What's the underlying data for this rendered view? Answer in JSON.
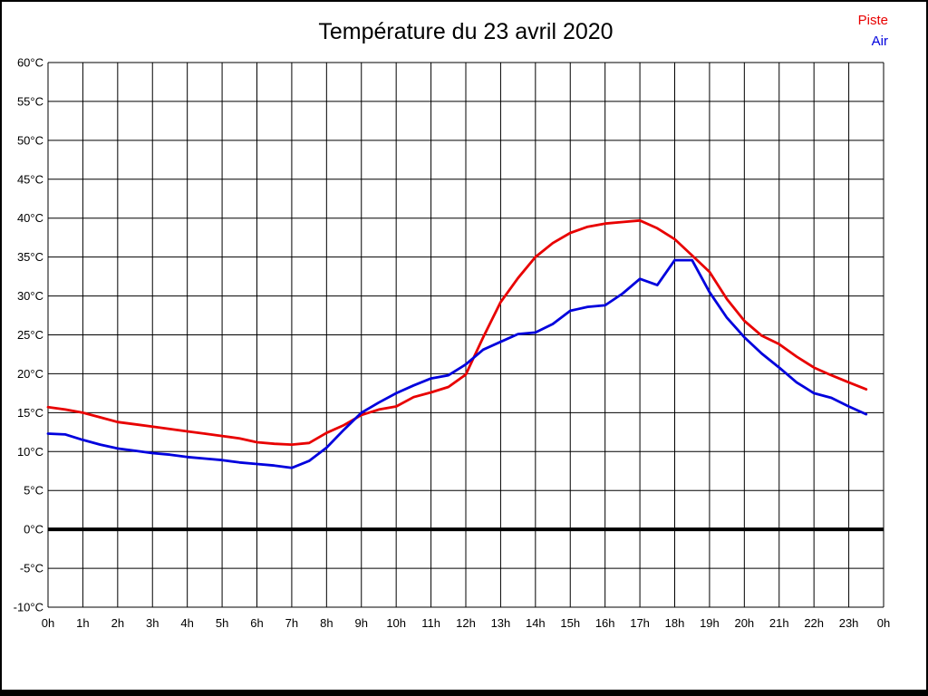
{
  "header": {
    "title": "Température du 23 avril 2020"
  },
  "legend": {
    "items": [
      {
        "label": "Piste",
        "color": "#e80000"
      },
      {
        "label": "Air",
        "color": "#0000dd"
      }
    ]
  },
  "chart_data": {
    "type": "line",
    "title": "Température du 23 avril 2020",
    "xlabel": "",
    "ylabel": "",
    "xlim": [
      0,
      24
    ],
    "ylim": [
      -10,
      60
    ],
    "grid": "on",
    "legend_position": "top-right",
    "x_unit": "hours",
    "x": [
      0,
      0.5,
      1,
      1.5,
      2,
      2.5,
      3,
      3.5,
      4,
      4.5,
      5,
      5.5,
      6,
      6.5,
      7,
      7.5,
      8,
      8.5,
      9,
      9.5,
      10,
      10.5,
      11,
      11.5,
      12,
      12.5,
      13,
      13.5,
      14,
      14.5,
      15,
      15.5,
      16,
      16.5,
      17,
      17.5,
      18,
      18.5,
      19,
      19.5,
      20,
      20.5,
      21,
      21.5,
      22,
      22.5,
      23,
      23.5
    ],
    "series": [
      {
        "name": "Piste",
        "color": "#e80000",
        "values": [
          15.7,
          15.4,
          15.0,
          14.4,
          13.8,
          13.5,
          13.2,
          12.9,
          12.6,
          12.3,
          12.0,
          11.7,
          11.2,
          11.0,
          10.9,
          11.1,
          12.4,
          13.4,
          14.7,
          15.4,
          15.8,
          17.0,
          17.6,
          18.3,
          19.9,
          24.7,
          29.2,
          32.3,
          35.0,
          36.8,
          38.1,
          38.9,
          39.3,
          39.5,
          39.7,
          38.7,
          37.3,
          35.2,
          33.1,
          29.6,
          26.8,
          24.9,
          23.8,
          22.2,
          20.8,
          19.8,
          18.9,
          18.0
        ]
      },
      {
        "name": "Air",
        "color": "#0000dd",
        "values": [
          12.3,
          12.2,
          11.5,
          10.9,
          10.4,
          10.1,
          9.8,
          9.6,
          9.3,
          9.1,
          8.9,
          8.6,
          8.4,
          8.2,
          7.9,
          8.8,
          10.5,
          12.8,
          15.0,
          16.3,
          17.5,
          18.5,
          19.4,
          19.8,
          21.2,
          23.1,
          24.1,
          25.1,
          25.3,
          26.4,
          28.1,
          28.6,
          28.8,
          30.3,
          32.2,
          31.4,
          34.6,
          34.6,
          30.5,
          27.2,
          24.7,
          22.6,
          20.8,
          18.9,
          17.5,
          16.9,
          15.8,
          14.8
        ]
      }
    ],
    "x_tick_hours": [
      0,
      1,
      2,
      3,
      4,
      5,
      6,
      7,
      8,
      9,
      10,
      11,
      12,
      13,
      14,
      15,
      16,
      17,
      18,
      19,
      20,
      21,
      22,
      23,
      24
    ],
    "x_tick_labels": [
      "0h",
      "1h",
      "2h",
      "3h",
      "4h",
      "5h",
      "6h",
      "7h",
      "8h",
      "9h",
      "10h",
      "11h",
      "12h",
      "13h",
      "14h",
      "15h",
      "16h",
      "17h",
      "18h",
      "19h",
      "20h",
      "21h",
      "22h",
      "23h",
      "0h"
    ],
    "y_tick_values": [
      60,
      55,
      50,
      45,
      40,
      35,
      30,
      25,
      20,
      15,
      10,
      5,
      0,
      -5,
      -10
    ],
    "y_tick_labels": [
      "60°C",
      "55°C",
      "50°C",
      "45°C",
      "40°C",
      "35°C",
      "30°C",
      "25°C",
      "20°C",
      "15°C",
      "10°C",
      "5°C",
      "0°C",
      "-5°C",
      "-10°C"
    ],
    "zero_line": {
      "value": 0,
      "color": "#000000",
      "width": 4
    }
  }
}
